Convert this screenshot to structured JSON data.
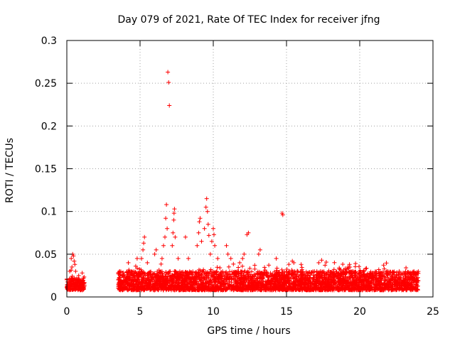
{
  "chart_data": {
    "type": "scatter",
    "title": "Day 079 of 2021, Rate Of TEC Index for receiver jfng",
    "xlabel": "GPS time / hours",
    "ylabel": "ROTI / TECUs",
    "xlim": [
      0,
      25
    ],
    "ylim": [
      0,
      0.3
    ],
    "xticks": [
      0,
      5,
      10,
      15,
      20,
      25
    ],
    "yticks": [
      0,
      0.05,
      0.1,
      0.15,
      0.2,
      0.25,
      0.3
    ],
    "ytick_labels": [
      "0",
      "0.05",
      "0.1",
      "0.15",
      "0.2",
      "0.25",
      "0.3"
    ],
    "grid": true,
    "marker": "+",
    "color": "#ff0000",
    "background_band": {
      "segments": [
        [
          0.0,
          1.2,
          0.008,
          0.022
        ],
        [
          3.5,
          24.0,
          0.008,
          0.03
        ]
      ],
      "density_per_hour": 170
    },
    "points": [
      [
        0.3,
        0.045
      ],
      [
        0.4,
        0.05
      ],
      [
        0.45,
        0.048
      ],
      [
        0.5,
        0.042
      ],
      [
        0.55,
        0.038
      ],
      [
        0.35,
        0.035
      ],
      [
        0.6,
        0.03
      ],
      [
        1.05,
        0.028
      ],
      [
        0.2,
        0.03
      ],
      [
        4.2,
        0.04
      ],
      [
        4.8,
        0.045
      ],
      [
        5.1,
        0.045
      ],
      [
        5.2,
        0.055
      ],
      [
        5.25,
        0.063
      ],
      [
        5.3,
        0.07
      ],
      [
        5.5,
        0.04
      ],
      [
        6.0,
        0.05
      ],
      [
        6.1,
        0.055
      ],
      [
        6.5,
        0.045
      ],
      [
        6.6,
        0.06
      ],
      [
        6.7,
        0.07
      ],
      [
        6.75,
        0.092
      ],
      [
        6.8,
        0.108
      ],
      [
        6.85,
        0.08
      ],
      [
        6.9,
        0.263
      ],
      [
        6.95,
        0.251
      ],
      [
        7.0,
        0.224
      ],
      [
        7.2,
        0.06
      ],
      [
        7.25,
        0.075
      ],
      [
        7.3,
        0.09
      ],
      [
        7.32,
        0.098
      ],
      [
        7.35,
        0.103
      ],
      [
        7.4,
        0.07
      ],
      [
        7.6,
        0.045
      ],
      [
        8.1,
        0.07
      ],
      [
        8.3,
        0.045
      ],
      [
        8.9,
        0.06
      ],
      [
        9.0,
        0.075
      ],
      [
        9.05,
        0.088
      ],
      [
        9.1,
        0.092
      ],
      [
        9.2,
        0.065
      ],
      [
        9.4,
        0.08
      ],
      [
        9.5,
        0.105
      ],
      [
        9.55,
        0.115
      ],
      [
        9.6,
        0.1
      ],
      [
        9.65,
        0.085
      ],
      [
        9.7,
        0.072
      ],
      [
        9.8,
        0.05
      ],
      [
        9.9,
        0.065
      ],
      [
        10.0,
        0.08
      ],
      [
        10.05,
        0.073
      ],
      [
        10.1,
        0.06
      ],
      [
        10.3,
        0.045
      ],
      [
        10.9,
        0.06
      ],
      [
        11.0,
        0.05
      ],
      [
        11.2,
        0.045
      ],
      [
        11.8,
        0.04
      ],
      [
        12.0,
        0.045
      ],
      [
        12.1,
        0.05
      ],
      [
        12.3,
        0.073
      ],
      [
        12.4,
        0.075
      ],
      [
        13.1,
        0.05
      ],
      [
        13.2,
        0.055
      ],
      [
        14.3,
        0.045
      ],
      [
        14.7,
        0.098
      ],
      [
        14.75,
        0.096
      ],
      [
        15.4,
        0.042
      ],
      [
        15.5,
        0.04
      ],
      [
        16.0,
        0.038
      ],
      [
        17.2,
        0.04
      ],
      [
        17.4,
        0.043
      ],
      [
        19.2,
        0.035
      ],
      [
        19.3,
        0.038
      ],
      [
        21.3,
        0.032
      ],
      [
        23.7,
        0.03
      ],
      [
        23.8,
        0.028
      ],
      [
        22.7,
        0.03
      ],
      [
        18.6,
        0.034
      ],
      [
        20.4,
        0.033
      ]
    ]
  }
}
